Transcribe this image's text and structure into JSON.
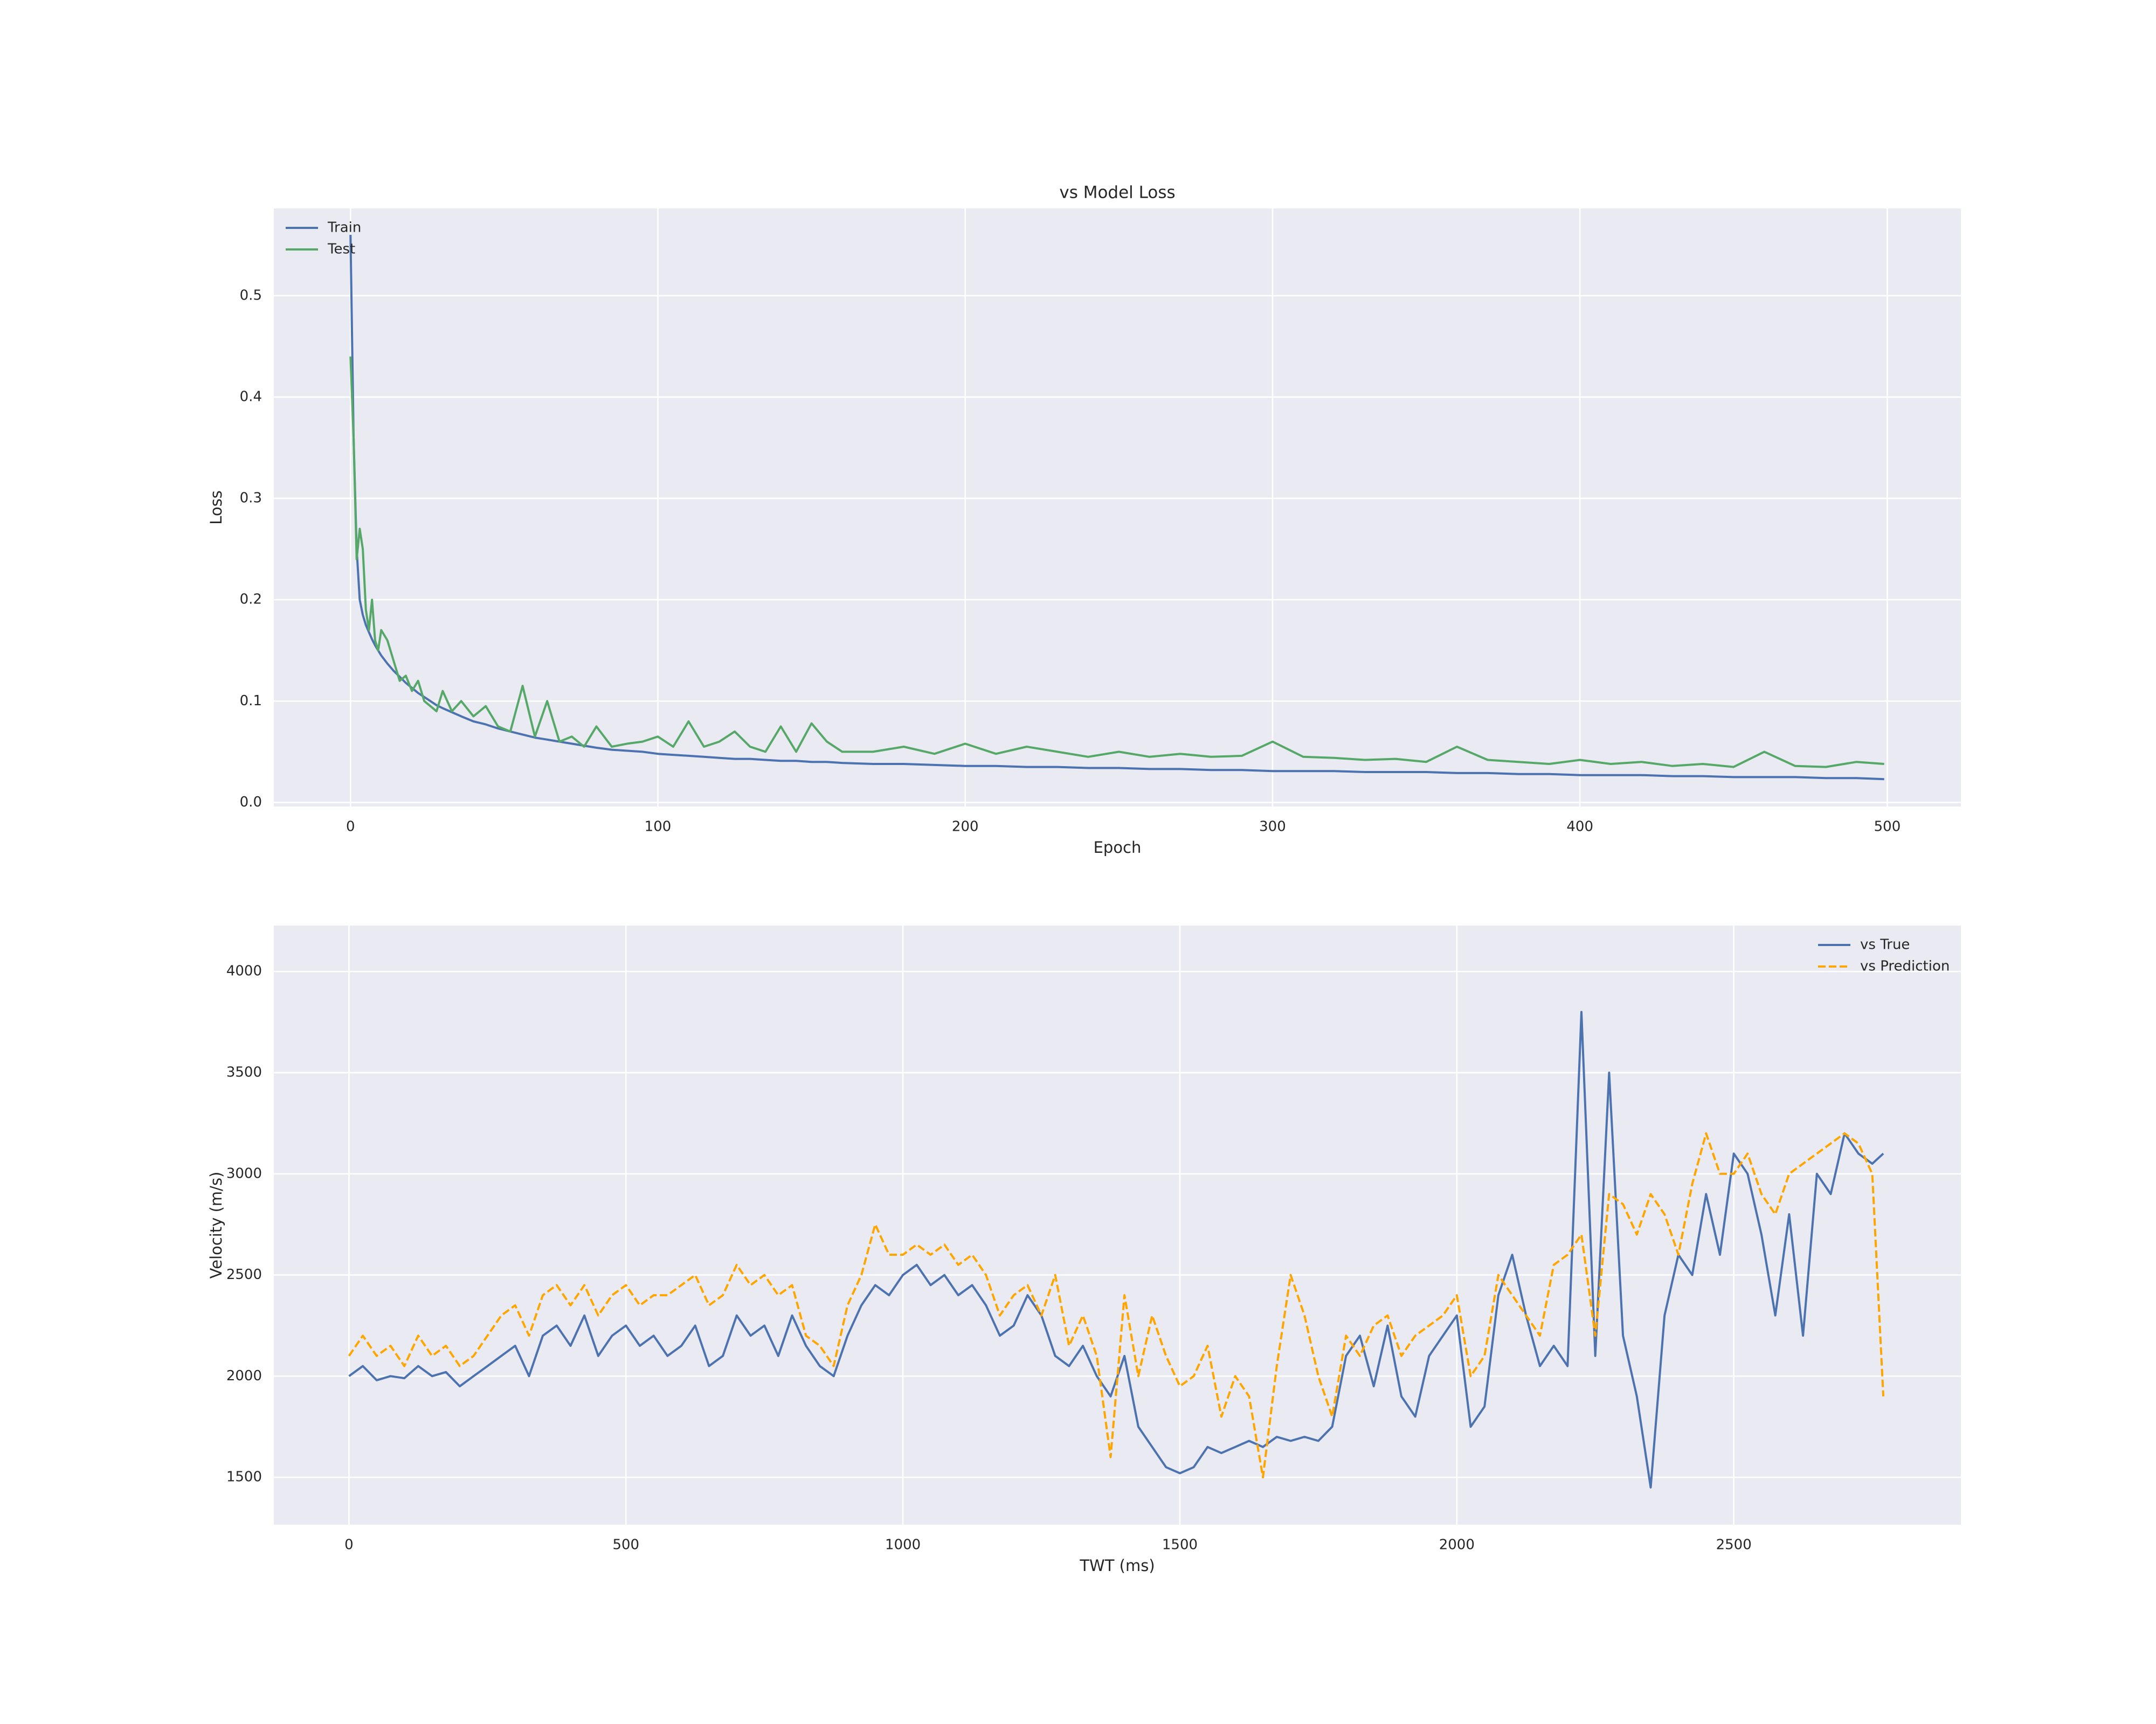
{
  "chart_data": [
    {
      "type": "line",
      "title": "vs Model Loss",
      "xlabel": "Epoch",
      "ylabel": "Loss",
      "x": [
        0,
        1,
        2,
        3,
        4,
        5,
        6,
        7,
        8,
        9,
        10,
        12,
        14,
        16,
        18,
        20,
        22,
        24,
        26,
        28,
        30,
        33,
        36,
        40,
        44,
        48,
        52,
        56,
        60,
        64,
        68,
        72,
        76,
        80,
        85,
        90,
        95,
        100,
        105,
        110,
        115,
        120,
        125,
        130,
        135,
        140,
        145,
        150,
        155,
        160,
        170,
        180,
        190,
        200,
        210,
        220,
        230,
        240,
        250,
        260,
        270,
        280,
        290,
        300,
        310,
        320,
        330,
        340,
        350,
        360,
        370,
        380,
        390,
        400,
        410,
        420,
        430,
        440,
        450,
        460,
        470,
        480,
        490,
        499
      ],
      "series": [
        {
          "name": "Train",
          "color": "#4c72b0",
          "linestyle": "solid",
          "values": [
            0.56,
            0.36,
            0.25,
            0.2,
            0.185,
            0.175,
            0.168,
            0.161,
            0.155,
            0.15,
            0.145,
            0.137,
            0.13,
            0.124,
            0.118,
            0.113,
            0.108,
            0.104,
            0.1,
            0.096,
            0.093,
            0.089,
            0.085,
            0.08,
            0.077,
            0.073,
            0.07,
            0.067,
            0.064,
            0.062,
            0.06,
            0.058,
            0.056,
            0.054,
            0.052,
            0.051,
            0.05,
            0.048,
            0.047,
            0.046,
            0.045,
            0.044,
            0.043,
            0.043,
            0.042,
            0.041,
            0.041,
            0.04,
            0.04,
            0.039,
            0.038,
            0.038,
            0.037,
            0.036,
            0.036,
            0.035,
            0.035,
            0.034,
            0.034,
            0.033,
            0.033,
            0.032,
            0.032,
            0.031,
            0.031,
            0.031,
            0.03,
            0.03,
            0.03,
            0.029,
            0.029,
            0.028,
            0.028,
            0.027,
            0.027,
            0.027,
            0.026,
            0.026,
            0.025,
            0.025,
            0.025,
            0.024,
            0.024,
            0.023
          ]
        },
        {
          "name": "Test",
          "color": "#55a868",
          "linestyle": "solid",
          "values": [
            0.44,
            0.36,
            0.24,
            0.27,
            0.25,
            0.19,
            0.17,
            0.2,
            0.16,
            0.15,
            0.17,
            0.16,
            0.14,
            0.12,
            0.125,
            0.11,
            0.12,
            0.1,
            0.095,
            0.09,
            0.11,
            0.09,
            0.1,
            0.085,
            0.095,
            0.075,
            0.07,
            0.115,
            0.065,
            0.1,
            0.06,
            0.065,
            0.055,
            0.075,
            0.055,
            0.058,
            0.06,
            0.065,
            0.055,
            0.08,
            0.055,
            0.06,
            0.07,
            0.055,
            0.05,
            0.075,
            0.05,
            0.078,
            0.06,
            0.05,
            0.05,
            0.055,
            0.048,
            0.058,
            0.048,
            0.055,
            0.05,
            0.045,
            0.05,
            0.045,
            0.048,
            0.045,
            0.046,
            0.06,
            0.045,
            0.044,
            0.042,
            0.043,
            0.04,
            0.055,
            0.042,
            0.04,
            0.038,
            0.042,
            0.038,
            0.04,
            0.036,
            0.038,
            0.035,
            0.05,
            0.036,
            0.035,
            0.04,
            0.038
          ]
        }
      ],
      "xlim": [
        -24.95,
        523.95
      ],
      "xticks": [
        0,
        100,
        200,
        300,
        400,
        500
      ],
      "ylim": [
        -0.004,
        0.586
      ],
      "yticks": [
        {
          "value": 0,
          "label": "0.0"
        },
        0.1,
        0.2,
        0.3,
        0.4,
        0.5
      ],
      "grid": true,
      "legend": "upper left"
    },
    {
      "type": "line",
      "xlabel": "TWT (ms)",
      "ylabel": "Velocity (m/s)",
      "x": [
        0,
        25,
        50,
        75,
        100,
        125,
        150,
        175,
        200,
        225,
        250,
        275,
        300,
        325,
        350,
        375,
        400,
        425,
        450,
        475,
        500,
        525,
        550,
        575,
        600,
        625,
        650,
        675,
        700,
        725,
        750,
        775,
        800,
        825,
        850,
        875,
        900,
        925,
        950,
        975,
        1000,
        1025,
        1050,
        1075,
        1100,
        1125,
        1150,
        1175,
        1200,
        1225,
        1250,
        1275,
        1300,
        1325,
        1350,
        1375,
        1400,
        1425,
        1450,
        1475,
        1500,
        1525,
        1550,
        1575,
        1600,
        1625,
        1650,
        1675,
        1700,
        1725,
        1750,
        1775,
        1800,
        1825,
        1850,
        1875,
        1900,
        1925,
        1950,
        1975,
        2000,
        2025,
        2050,
        2075,
        2100,
        2125,
        2150,
        2175,
        2200,
        2225,
        2250,
        2275,
        2300,
        2325,
        2350,
        2375,
        2400,
        2425,
        2450,
        2475,
        2500,
        2525,
        2550,
        2575,
        2600,
        2625,
        2650,
        2675,
        2700,
        2725,
        2750,
        2770
      ],
      "series": [
        {
          "name": "vs True",
          "color": "#4c72b0",
          "linestyle": "solid",
          "values": [
            2000,
            2050,
            1980,
            2000,
            1990,
            2050,
            2000,
            2020,
            1950,
            2000,
            2050,
            2100,
            2150,
            2000,
            2200,
            2250,
            2150,
            2300,
            2100,
            2200,
            2250,
            2150,
            2200,
            2100,
            2150,
            2250,
            2050,
            2100,
            2300,
            2200,
            2250,
            2100,
            2300,
            2150,
            2050,
            2000,
            2200,
            2350,
            2450,
            2400,
            2500,
            2550,
            2450,
            2500,
            2400,
            2450,
            2350,
            2200,
            2250,
            2400,
            2300,
            2100,
            2050,
            2150,
            2000,
            1900,
            2100,
            1750,
            1650,
            1550,
            1520,
            1550,
            1650,
            1620,
            1650,
            1680,
            1650,
            1700,
            1680,
            1700,
            1680,
            1750,
            2100,
            2200,
            1950,
            2250,
            1900,
            1800,
            2100,
            2200,
            2300,
            1750,
            1850,
            2400,
            2600,
            2300,
            2050,
            2150,
            2050,
            3800,
            2100,
            3500,
            2200,
            1900,
            1450,
            2300,
            2600,
            2500,
            2900,
            2600,
            3100,
            3000,
            2700,
            2300,
            2800,
            2200,
            3000,
            2900,
            3200,
            3100,
            3050,
            3100
          ]
        },
        {
          "name": "vs Prediction",
          "color": "#ffa500",
          "linestyle": "dashed",
          "values": [
            2100,
            2200,
            2100,
            2150,
            2050,
            2200,
            2100,
            2150,
            2050,
            2100,
            2200,
            2300,
            2350,
            2200,
            2400,
            2450,
            2350,
            2450,
            2300,
            2400,
            2450,
            2350,
            2400,
            2400,
            2450,
            2500,
            2350,
            2400,
            2550,
            2450,
            2500,
            2400,
            2450,
            2200,
            2150,
            2050,
            2350,
            2500,
            2750,
            2600,
            2600,
            2650,
            2600,
            2650,
            2550,
            2600,
            2500,
            2300,
            2400,
            2450,
            2300,
            2500,
            2150,
            2300,
            2100,
            1600,
            2400,
            2000,
            2300,
            2100,
            1950,
            2000,
            2150,
            1800,
            2000,
            1900,
            1500,
            2050,
            2500,
            2300,
            2000,
            1800,
            2200,
            2100,
            2250,
            2300,
            2100,
            2200,
            2250,
            2300,
            2400,
            2000,
            2100,
            2500,
            2400,
            2300,
            2200,
            2550,
            2600,
            2700,
            2200,
            2900,
            2850,
            2700,
            2900,
            2800,
            2600,
            2950,
            3200,
            3000,
            3000,
            3100,
            2900,
            2800,
            3000,
            3050,
            3100,
            3150,
            3200,
            3150,
            3000,
            1900
          ]
        }
      ],
      "xlim": [
        -135.7,
        2910
      ],
      "xticks": [
        0,
        500,
        1000,
        1500,
        2000,
        2500
      ],
      "ylim": [
        1266,
        4227
      ],
      "yticks": [
        1500,
        2000,
        2500,
        3000,
        3500,
        4000
      ],
      "grid": true,
      "legend": "upper right"
    }
  ]
}
